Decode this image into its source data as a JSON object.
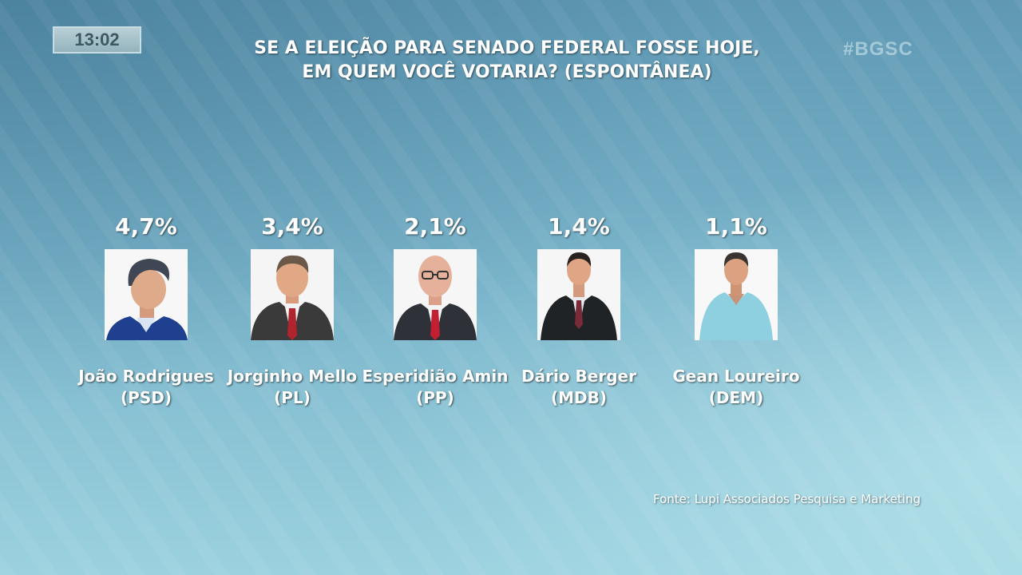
{
  "clock": "13:02",
  "hashtag": "#BGSC",
  "title": {
    "line1": "SE A ELEIÇÃO PARA SENADO FEDERAL FOSSE HOJE,",
    "line2": "EM QUEM VOCÊ VOTARIA? (ESPONTÂNEA)"
  },
  "candidates": [
    {
      "percent": "4,7%",
      "name": "João Rodrigues",
      "party": "(PSD)",
      "value": 4.7
    },
    {
      "percent": "3,4%",
      "name": "Jorginho Mello",
      "party": "(PL)",
      "value": 3.4
    },
    {
      "percent": "2,1%",
      "name": "Esperidião Amin",
      "party": "(PP)",
      "value": 2.1
    },
    {
      "percent": "1,4%",
      "name": "Dário Berger",
      "party": "(MDB)",
      "value": 1.4
    },
    {
      "percent": "1,1%",
      "name": "Gean Loureiro",
      "party": "(DEM)",
      "value": 1.1
    }
  ],
  "source": "Fonte: Lupi Associados Pesquisa e Marketing"
}
